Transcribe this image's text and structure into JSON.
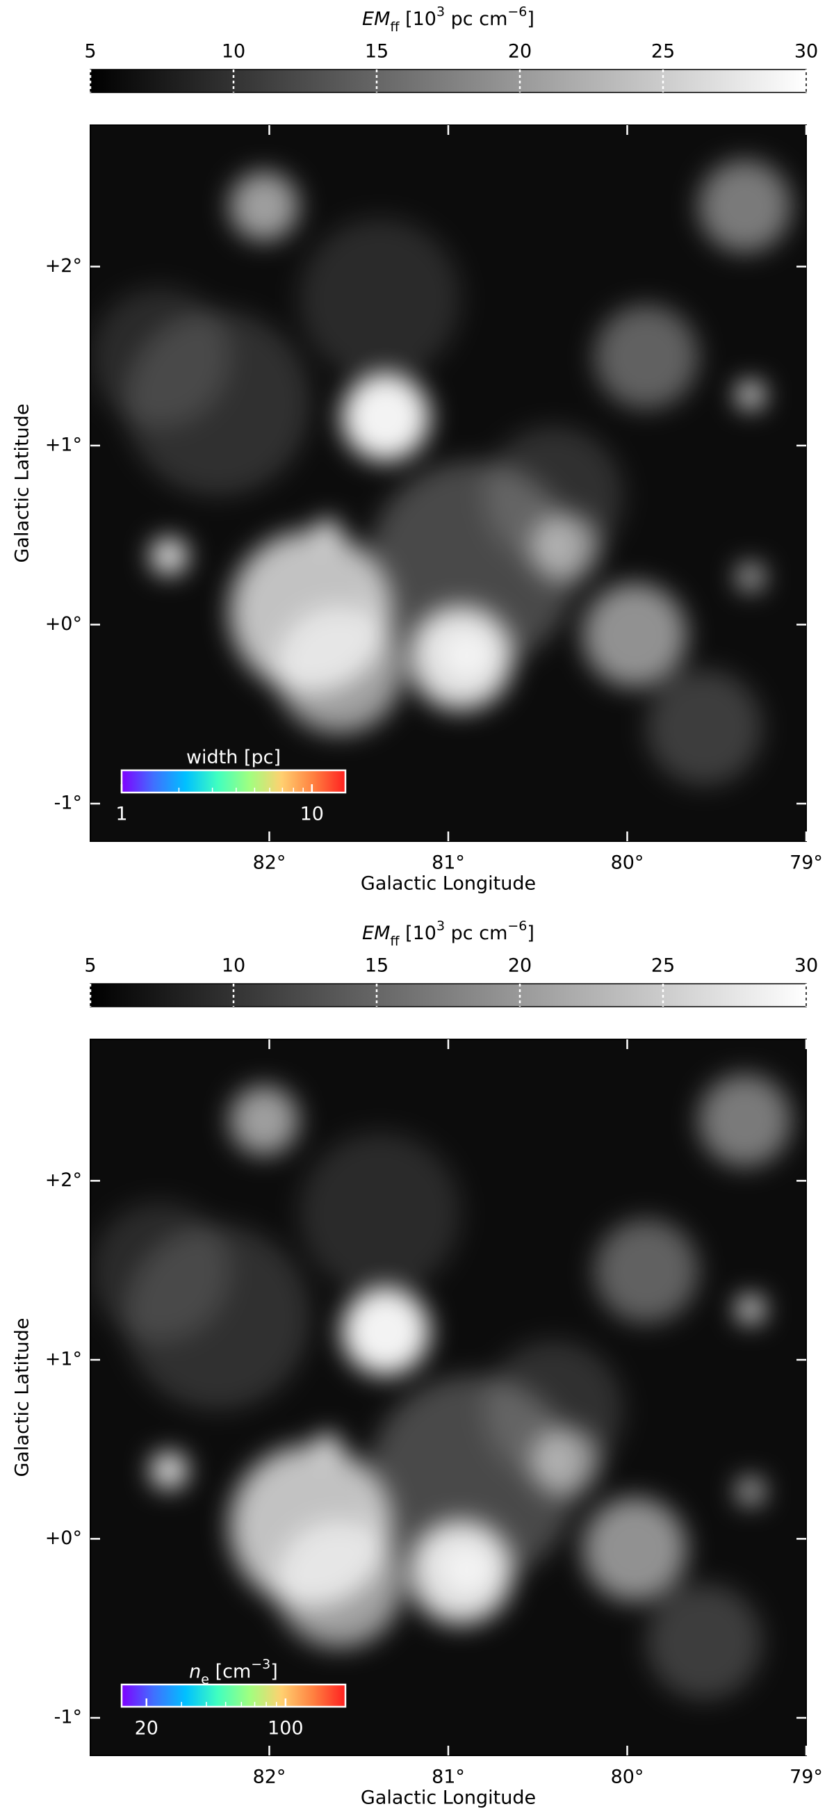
{
  "chart_data": [
    {
      "type": "image",
      "xlabel": "Galactic Longitude",
      "ylabel": "Galactic Latitude",
      "xlim": [
        83,
        79
      ],
      "xticks": [
        {
          "value": 82,
          "label": "82°"
        },
        {
          "value": 81,
          "label": "81°"
        },
        {
          "value": 80,
          "label": "80°"
        },
        {
          "value": 79,
          "label": "79°"
        }
      ],
      "ylim": [
        -1.21,
        2.79
      ],
      "yticks": [
        {
          "value": -1,
          "label": "-1°"
        },
        {
          "value": 0,
          "label": "+0°"
        },
        {
          "value": 1,
          "label": "+1°"
        },
        {
          "value": 2,
          "label": "+2°"
        }
      ],
      "colorbar": {
        "label": [
          {
            "text": "EM",
            "style": "italic"
          },
          {
            "text": "ff",
            "style": "sub"
          },
          {
            "text": " [10"
          },
          {
            "text": "3",
            "style": "sup"
          },
          {
            "text": " pc cm"
          },
          {
            "text": "−6",
            "style": "sup"
          },
          {
            "text": "]"
          }
        ],
        "lim": [
          5,
          30
        ],
        "ticks": [
          5,
          10,
          15,
          20,
          25,
          30
        ],
        "colormap": [
          "#000000",
          "#ffffff"
        ]
      },
      "inset_colorbar": {
        "label": [
          {
            "text": "width [pc]"
          }
        ],
        "lim": [
          1,
          15
        ],
        "ticks": [
          1,
          10
        ],
        "minor_ticks": [
          2,
          3,
          4,
          5,
          6,
          7,
          8,
          9
        ],
        "log": true,
        "colormap": [
          "#8000ff",
          "#4070ff",
          "#00c0ff",
          "#40ffc0",
          "#a0ff80",
          "#ffd070",
          "#ff8040",
          "#ff2020"
        ]
      }
    },
    {
      "type": "image",
      "xlabel": "Galactic Longitude",
      "ylabel": "Galactic Latitude",
      "xlim": [
        83,
        79
      ],
      "xticks": [
        {
          "value": 82,
          "label": "82°"
        },
        {
          "value": 81,
          "label": "81°"
        },
        {
          "value": 80,
          "label": "80°"
        },
        {
          "value": 79,
          "label": "79°"
        }
      ],
      "ylim": [
        -1.21,
        2.79
      ],
      "yticks": [
        {
          "value": -1,
          "label": "-1°"
        },
        {
          "value": 0,
          "label": "+0°"
        },
        {
          "value": 1,
          "label": "+1°"
        },
        {
          "value": 2,
          "label": "+2°"
        }
      ],
      "colorbar": {
        "label": [
          {
            "text": "EM",
            "style": "italic"
          },
          {
            "text": "ff",
            "style": "sub"
          },
          {
            "text": " [10"
          },
          {
            "text": "3",
            "style": "sup"
          },
          {
            "text": " pc cm"
          },
          {
            "text": "−6",
            "style": "sup"
          },
          {
            "text": "]"
          }
        ],
        "lim": [
          5,
          30
        ],
        "ticks": [
          5,
          10,
          15,
          20,
          25,
          30
        ],
        "colormap": [
          "#000000",
          "#ffffff"
        ]
      },
      "inset_colorbar": {
        "label": [
          {
            "text": "n",
            "style": "italic"
          },
          {
            "text": "e",
            "style": "sub"
          },
          {
            "text": " [cm"
          },
          {
            "text": "−3",
            "style": "sup"
          },
          {
            "text": "]"
          }
        ],
        "lim": [
          15,
          200
        ],
        "ticks": [
          20,
          100
        ],
        "minor_ticks": [
          30,
          40,
          50,
          60,
          70,
          80,
          90
        ],
        "log": true,
        "colormap": [
          "#8000ff",
          "#4070ff",
          "#00c0ff",
          "#40ffc0",
          "#a0ff80",
          "#ffd070",
          "#ff8040",
          "#ff2020"
        ]
      }
    }
  ]
}
